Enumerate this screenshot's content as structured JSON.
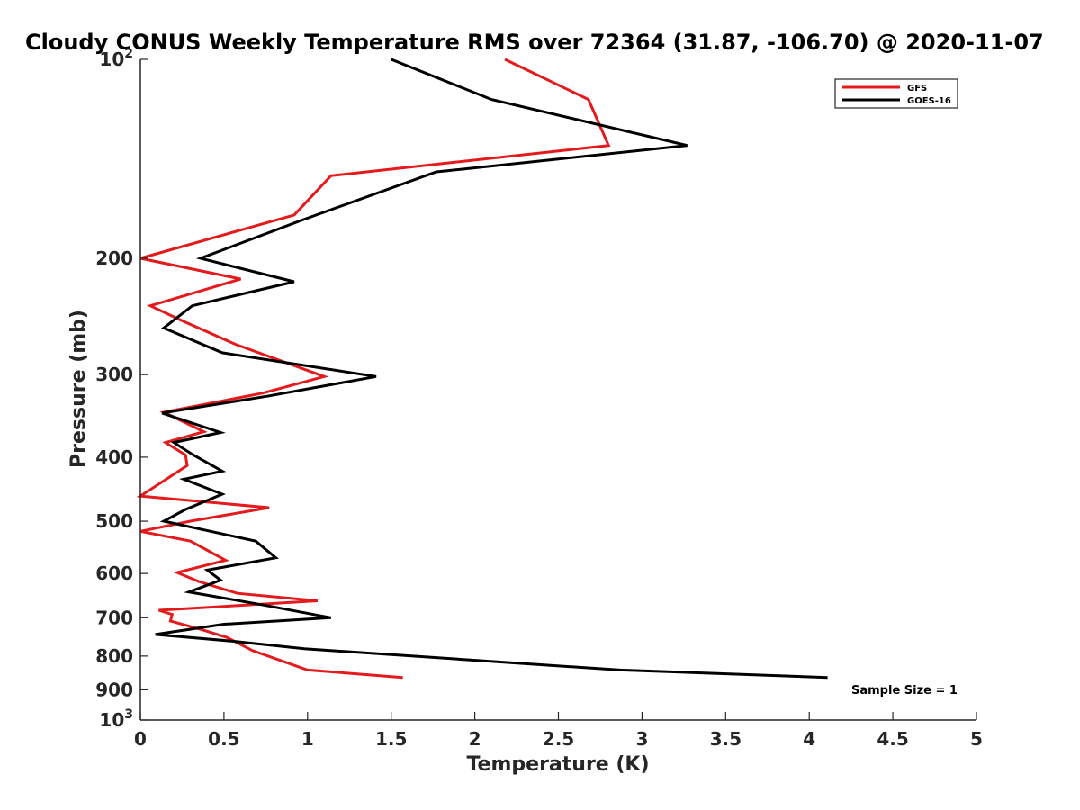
{
  "chart_data": {
    "type": "line",
    "title": "Cloudy CONUS Weekly Temperature RMS over 72364 (31.87, -106.70) @ 2020-11-07",
    "xlabel": "Temperature (K)",
    "ylabel": "Pressure (mb)",
    "xlim": [
      0,
      5
    ],
    "ylim": [
      100,
      1000
    ],
    "yscale": "log",
    "y_reversed": true,
    "x_ticks": [
      "0",
      "0.5",
      "1",
      "1.5",
      "2",
      "2.5",
      "3",
      "3.5",
      "4",
      "4.5",
      "5"
    ],
    "x_tick_values": [
      0,
      0.5,
      1,
      1.5,
      2,
      2.5,
      3,
      3.5,
      4,
      4.5,
      5
    ],
    "y_ticks": [
      {
        "value": 100,
        "base": "10",
        "exp": "2"
      },
      {
        "value": 200,
        "label": "200"
      },
      {
        "value": 300,
        "label": "300"
      },
      {
        "value": 400,
        "label": "400"
      },
      {
        "value": 500,
        "label": "500"
      },
      {
        "value": 600,
        "label": "600"
      },
      {
        "value": 700,
        "label": "700"
      },
      {
        "value": 800,
        "label": "800"
      },
      {
        "value": 900,
        "label": "900"
      },
      {
        "value": 1000,
        "base": "10",
        "exp": "3"
      }
    ],
    "grid": false,
    "legend_position": "top-right",
    "annotation": "Sample Size = 1",
    "series": [
      {
        "name": "GFS",
        "color": "#e41a1c",
        "points": [
          [
            2.18,
            100
          ],
          [
            2.68,
            115
          ],
          [
            2.8,
            135
          ],
          [
            1.14,
            150
          ],
          [
            0.92,
            172
          ],
          [
            0.0,
            200
          ],
          [
            0.6,
            215
          ],
          [
            0.06,
            236
          ],
          [
            0.24,
            248
          ],
          [
            0.57,
            270
          ],
          [
            1.1,
            302
          ],
          [
            0.73,
            320
          ],
          [
            0.14,
            342
          ],
          [
            0.38,
            366
          ],
          [
            0.15,
            380
          ],
          [
            0.27,
            397
          ],
          [
            0.28,
            412
          ],
          [
            0.0,
            458
          ],
          [
            0.77,
            477
          ],
          [
            0.3,
            500
          ],
          [
            0.0,
            518
          ],
          [
            0.3,
            536
          ],
          [
            0.51,
            573
          ],
          [
            0.22,
            598
          ],
          [
            0.35,
            617
          ],
          [
            0.58,
            643
          ],
          [
            1.06,
            660
          ],
          [
            0.11,
            682
          ],
          [
            0.19,
            692
          ],
          [
            0.18,
            708
          ],
          [
            0.37,
            730
          ],
          [
            0.52,
            750
          ],
          [
            0.67,
            785
          ],
          [
            1.0,
            840
          ],
          [
            1.57,
            862
          ]
        ]
      },
      {
        "name": "GOES-16",
        "color": "#000000",
        "points": [
          [
            1.5,
            100
          ],
          [
            2.1,
            115
          ],
          [
            3.27,
            135
          ],
          [
            1.77,
            148
          ],
          [
            0.97,
            175
          ],
          [
            0.36,
            200
          ],
          [
            0.92,
            217
          ],
          [
            0.31,
            236
          ],
          [
            0.14,
            255
          ],
          [
            0.49,
            278
          ],
          [
            1.41,
            302
          ],
          [
            0.77,
            323
          ],
          [
            0.13,
            343
          ],
          [
            0.48,
            367
          ],
          [
            0.2,
            380
          ],
          [
            0.31,
            396
          ],
          [
            0.49,
            420
          ],
          [
            0.26,
            432
          ],
          [
            0.49,
            455
          ],
          [
            0.27,
            480
          ],
          [
            0.14,
            500
          ],
          [
            0.69,
            536
          ],
          [
            0.81,
            568
          ],
          [
            0.4,
            593
          ],
          [
            0.48,
            614
          ],
          [
            0.29,
            640
          ],
          [
            0.74,
            670
          ],
          [
            1.14,
            700
          ],
          [
            0.5,
            716
          ],
          [
            0.09,
            742
          ],
          [
            0.56,
            760
          ],
          [
            0.98,
            780
          ],
          [
            2.87,
            840
          ],
          [
            4.11,
            862
          ]
        ]
      }
    ]
  }
}
